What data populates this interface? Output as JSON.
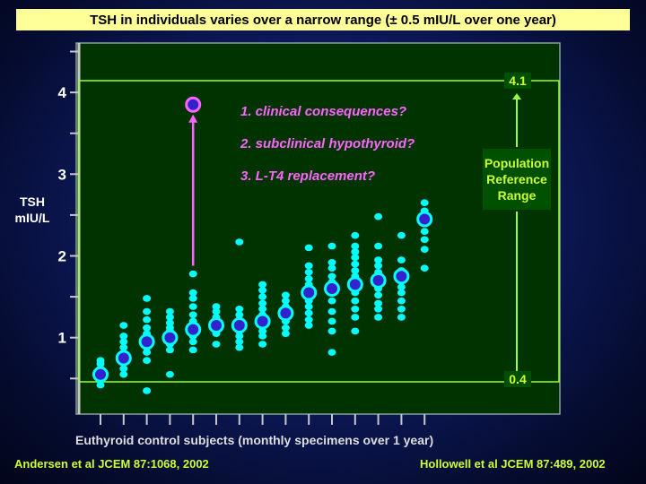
{
  "title": "TSH in individuals varies over a narrow range (± 0.5 mIU/L over one year)",
  "notes": [
    "1. clinical consequences?",
    "2. subclinical hypothyroid?",
    "3. L-T4 replacement?"
  ],
  "reference_box": {
    "line1": "Population",
    "line2": "Reference",
    "line3": "Range",
    "upper": "4.1",
    "lower": "0.4"
  },
  "footer": {
    "left": "Andersen et al JCEM 87:1068, 2002",
    "right": "Hollowell et al JCEM 87:489, 2002"
  },
  "colors": {
    "background": "#0d1a5c",
    "plot_bg": "#003300",
    "points": "#00ffff",
    "mean_marker": "#3322cc",
    "outlier_marker": "#ff66ff",
    "reference_lines": "#99ff33",
    "title_bg": "#ffff9a"
  },
  "chart_data": {
    "type": "scatter",
    "title": "TSH in individuals varies over a narrow range (± 0.5 mIU/L over one year)",
    "xlabel": "Euthyroid control subjects (monthly specimens over 1 year)",
    "ylabel_lines": [
      "TSH",
      "mIU/L"
    ],
    "ylabel": "TSH mIU/L",
    "ylim": [
      0.2,
      4.7
    ],
    "yticks": [
      "1",
      "2",
      "3",
      "4"
    ],
    "n_subjects": 15,
    "reference_range": [
      0.4,
      4.1
    ],
    "subjects": [
      {
        "mean": 0.55,
        "values": [
          0.42,
          0.48,
          0.55,
          0.62,
          0.68,
          0.72
        ]
      },
      {
        "mean": 0.75,
        "values": [
          0.55,
          0.62,
          0.7,
          0.8,
          0.88,
          0.95,
          1.02,
          1.15
        ]
      },
      {
        "mean": 0.95,
        "values": [
          0.35,
          0.72,
          0.82,
          0.88,
          1.0,
          1.05,
          1.12,
          1.22,
          1.32,
          1.48
        ]
      },
      {
        "mean": 1.0,
        "values": [
          0.55,
          0.85,
          0.92,
          1.08,
          1.12,
          1.18,
          1.25,
          1.32
        ]
      },
      {
        "mean": 1.1,
        "values": [
          0.85,
          0.95,
          1.02,
          1.2,
          1.28,
          1.38,
          1.48,
          1.55,
          1.78
        ],
        "outlier": 3.85
      },
      {
        "mean": 1.15,
        "values": [
          0.92,
          1.05,
          1.25,
          1.32,
          1.38
        ]
      },
      {
        "mean": 1.15,
        "values": [
          0.88,
          0.95,
          1.02,
          1.08,
          1.22,
          1.28,
          1.35,
          2.17
        ]
      },
      {
        "mean": 1.2,
        "values": [
          0.92,
          1.02,
          1.08,
          1.28,
          1.35,
          1.42,
          1.5,
          1.58,
          1.65
        ]
      },
      {
        "mean": 1.3,
        "values": [
          1.05,
          1.12,
          1.2,
          1.38,
          1.45,
          1.52
        ]
      },
      {
        "mean": 1.55,
        "values": [
          1.15,
          1.22,
          1.3,
          1.38,
          1.45,
          1.65,
          1.72,
          1.8,
          1.88,
          2.1
        ]
      },
      {
        "mean": 1.6,
        "values": [
          0.82,
          1.08,
          1.2,
          1.32,
          1.45,
          1.68,
          1.75,
          1.85,
          1.92,
          2.12
        ]
      },
      {
        "mean": 1.65,
        "values": [
          1.08,
          1.25,
          1.35,
          1.45,
          1.55,
          1.75,
          1.82,
          1.9,
          1.98,
          2.05,
          2.12,
          2.25
        ]
      },
      {
        "mean": 1.7,
        "values": [
          1.25,
          1.35,
          1.42,
          1.52,
          1.6,
          1.8,
          1.88,
          1.95,
          2.12,
          2.48
        ]
      },
      {
        "mean": 1.75,
        "values": [
          1.25,
          1.35,
          1.45,
          1.55,
          1.62,
          1.82,
          1.95,
          2.25
        ]
      },
      {
        "mean": 2.45,
        "values": [
          1.85,
          2.08,
          2.2,
          2.3,
          2.55,
          2.65
        ]
      }
    ]
  }
}
